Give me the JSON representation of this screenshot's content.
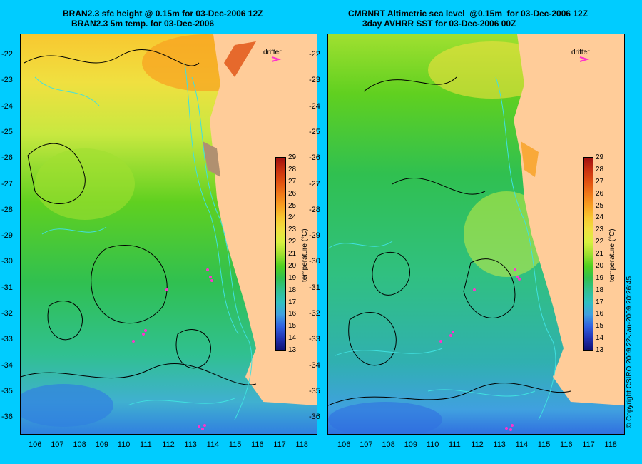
{
  "left_panel": {
    "title_line1": "BRAN2.3 sfc height @ 0.15m for 03-Dec-2006 12Z",
    "title_line2": "BRAN2.3 5m temp. for 03-Dec-2006",
    "drifter_label": "drifter"
  },
  "right_panel": {
    "title_line1": "CMRNRT Altimetric sea level  @0.15m  for 03-Dec-2006 12Z",
    "title_line2": "3day AVHRR SST for 03-Dec-2006 00Z",
    "drifter_label": "drifter"
  },
  "axes": {
    "lat_ticks": [
      "-22",
      "-23",
      "-24",
      "-25",
      "-26",
      "-27",
      "-28",
      "-29",
      "-30",
      "-31",
      "-32",
      "-33",
      "-34",
      "-35",
      "-36"
    ],
    "lon_ticks": [
      "106",
      "107",
      "108",
      "109",
      "110",
      "111",
      "112",
      "113",
      "114",
      "115",
      "116",
      "117",
      "118"
    ]
  },
  "colorbar": {
    "label": "temperature (°C)",
    "ticks": [
      "29",
      "28",
      "27",
      "26",
      "25",
      "24",
      "23",
      "22",
      "21",
      "20",
      "19",
      "18",
      "17",
      "16",
      "15",
      "14",
      "13"
    ],
    "colors": [
      "#a01010",
      "#c83010",
      "#e05010",
      "#f07818",
      "#f8a020",
      "#f8c830",
      "#f0e040",
      "#d8f040",
      "#a0e030",
      "#50d020",
      "#30c050",
      "#30c090",
      "#30c0c0",
      "#40a0e0",
      "#3060e0",
      "#2030b0",
      "#101070"
    ]
  },
  "copyright": "© Copyright CSIRO 2009   22-Jan-2009 20:26:45",
  "colors": {
    "background": "#00ccff",
    "land": "#ffcc99",
    "drifter": "#ff33cc"
  }
}
